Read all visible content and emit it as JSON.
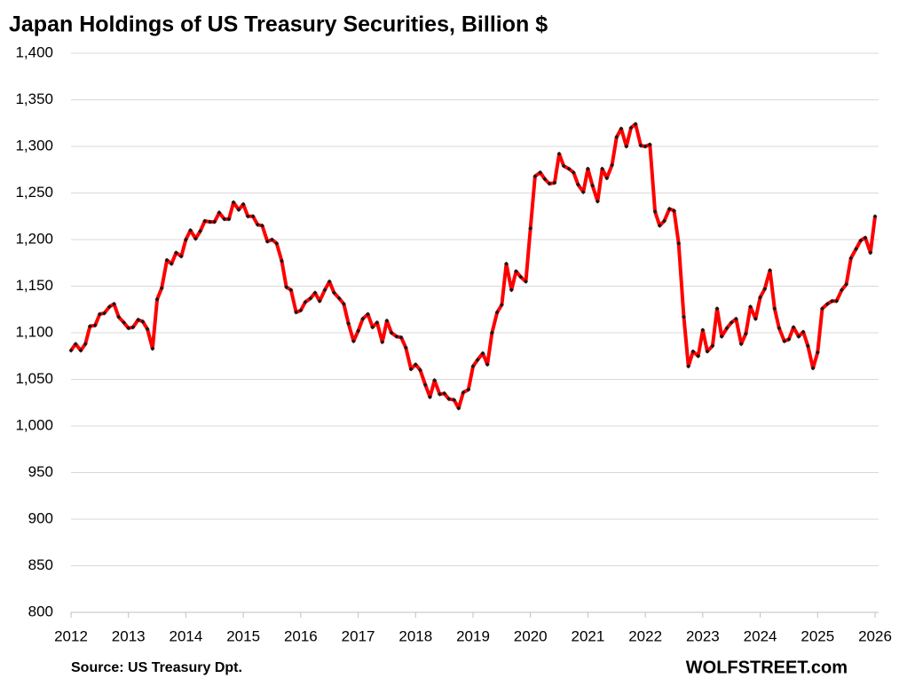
{
  "chart_data": {
    "type": "line",
    "title": "Japan Holdings of US Treasury Securities, Billion $",
    "source": "Source: US Treasury  Dpt.",
    "brand": "WOLFSTREET.com",
    "color": "#ff0000",
    "marker_color": "#1a1a1a",
    "grid": true,
    "xlim": [
      2012,
      2026
    ],
    "xticks": [
      2012,
      2013,
      2014,
      2015,
      2016,
      2017,
      2018,
      2019,
      2020,
      2021,
      2022,
      2023,
      2024,
      2025,
      2026
    ],
    "ylim": [
      800,
      1400
    ],
    "yticks": [
      {
        "value": 800,
        "label": "800"
      },
      {
        "value": 850,
        "label": "850"
      },
      {
        "value": 900,
        "label": "900"
      },
      {
        "value": 950,
        "label": "950"
      },
      {
        "value": 1000,
        "label": "1,000"
      },
      {
        "value": 1050,
        "label": "1,050"
      },
      {
        "value": 1100,
        "label": "1,100"
      },
      {
        "value": 1150,
        "label": "1,150"
      },
      {
        "value": 1200,
        "label": "1,200"
      },
      {
        "value": 1250,
        "label": "1,250"
      },
      {
        "value": 1300,
        "label": "1,300"
      },
      {
        "value": 1350,
        "label": "1,350"
      },
      {
        "value": 1400,
        "label": "1,400"
      }
    ],
    "x": [
      2012,
      2012.08,
      2012.17,
      2012.25,
      2012.33,
      2012.42,
      2012.5,
      2012.58,
      2012.67,
      2012.75,
      2012.83,
      2012.92,
      2013,
      2013.08,
      2013.17,
      2013.25,
      2013.33,
      2013.42,
      2013.5,
      2013.58,
      2013.67,
      2013.75,
      2013.83,
      2013.92,
      2014,
      2014.08,
      2014.17,
      2014.25,
      2014.33,
      2014.42,
      2014.5,
      2014.58,
      2014.67,
      2014.75,
      2014.83,
      2014.92,
      2015,
      2015.08,
      2015.17,
      2015.25,
      2015.33,
      2015.42,
      2015.5,
      2015.58,
      2015.67,
      2015.75,
      2015.83,
      2015.92,
      2016,
      2016.08,
      2016.17,
      2016.25,
      2016.33,
      2016.42,
      2016.5,
      2016.58,
      2016.67,
      2016.75,
      2016.83,
      2016.92,
      2017,
      2017.08,
      2017.17,
      2017.25,
      2017.33,
      2017.42,
      2017.5,
      2017.58,
      2017.67,
      2017.75,
      2017.83,
      2017.92,
      2018,
      2018.08,
      2018.17,
      2018.25,
      2018.33,
      2018.42,
      2018.5,
      2018.58,
      2018.67,
      2018.75,
      2018.83,
      2018.92,
      2019,
      2019.08,
      2019.17,
      2019.25,
      2019.33,
      2019.42,
      2019.5,
      2019.58,
      2019.67,
      2019.75,
      2019.83,
      2019.92,
      2020,
      2020.08,
      2020.17,
      2020.25,
      2020.33,
      2020.42,
      2020.5,
      2020.58,
      2020.67,
      2020.75,
      2020.83,
      2020.92,
      2021,
      2021.08,
      2021.17,
      2021.25,
      2021.33,
      2021.42,
      2021.5,
      2021.58,
      2021.67,
      2021.75,
      2021.83,
      2021.92,
      2022,
      2022.08,
      2022.17,
      2022.25,
      2022.33,
      2022.42,
      2022.5,
      2022.58,
      2022.67,
      2022.75,
      2022.83,
      2022.92,
      2023,
      2023.08,
      2023.17,
      2023.25,
      2023.33,
      2023.42,
      2023.5,
      2023.58,
      2023.67,
      2023.75,
      2023.83,
      2023.92,
      2024,
      2024.08,
      2024.17,
      2024.25,
      2024.33,
      2024.42,
      2024.5,
      2024.58,
      2024.67,
      2024.75,
      2024.83,
      2024.92,
      2025,
      2025.08,
      2025.17,
      2025.25,
      2025.33,
      2025.42,
      2025.5,
      2025.58,
      2025.67,
      2025.75,
      2025.83,
      2025.92,
      2026
    ],
    "values": [
      1081,
      1088,
      1081,
      1088,
      1107,
      1108,
      1120,
      1121,
      1128,
      1131,
      1117,
      1111,
      1105,
      1106,
      1114,
      1112,
      1104,
      1083,
      1136,
      1148,
      1178,
      1174,
      1186,
      1182,
      1200,
      1210,
      1201,
      1209,
      1220,
      1219,
      1219,
      1229,
      1222,
      1222,
      1240,
      1232,
      1238,
      1225,
      1225,
      1216,
      1215,
      1198,
      1200,
      1196,
      1177,
      1149,
      1146,
      1122,
      1124,
      1133,
      1137,
      1143,
      1134,
      1146,
      1155,
      1143,
      1137,
      1131,
      1110,
      1091,
      1102,
      1115,
      1120,
      1106,
      1111,
      1090,
      1113,
      1100,
      1096,
      1095,
      1084,
      1061,
      1066,
      1060,
      1044,
      1031,
      1049,
      1034,
      1035,
      1029,
      1028,
      1019,
      1036,
      1039,
      1064,
      1071,
      1078,
      1066,
      1100,
      1122,
      1130,
      1174,
      1146,
      1166,
      1160,
      1155,
      1212,
      1268,
      1272,
      1265,
      1260,
      1261,
      1292,
      1279,
      1276,
      1272,
      1259,
      1251,
      1276,
      1258,
      1241,
      1276,
      1266,
      1280,
      1310,
      1319,
      1300,
      1320,
      1324,
      1301,
      1300,
      1302,
      1230,
      1215,
      1220,
      1233,
      1231,
      1196,
      1117,
      1064,
      1080,
      1075,
      1103,
      1080,
      1086,
      1126,
      1096,
      1105,
      1111,
      1115,
      1088,
      1099,
      1128,
      1115,
      1138,
      1147,
      1167,
      1126,
      1105,
      1091,
      1093,
      1106,
      1096,
      1101,
      1086,
      1062,
      1079,
      1126,
      1131,
      1134,
      1134,
      1146,
      1152,
      1180,
      1190,
      1199,
      1202,
      1186,
      1225
    ]
  }
}
